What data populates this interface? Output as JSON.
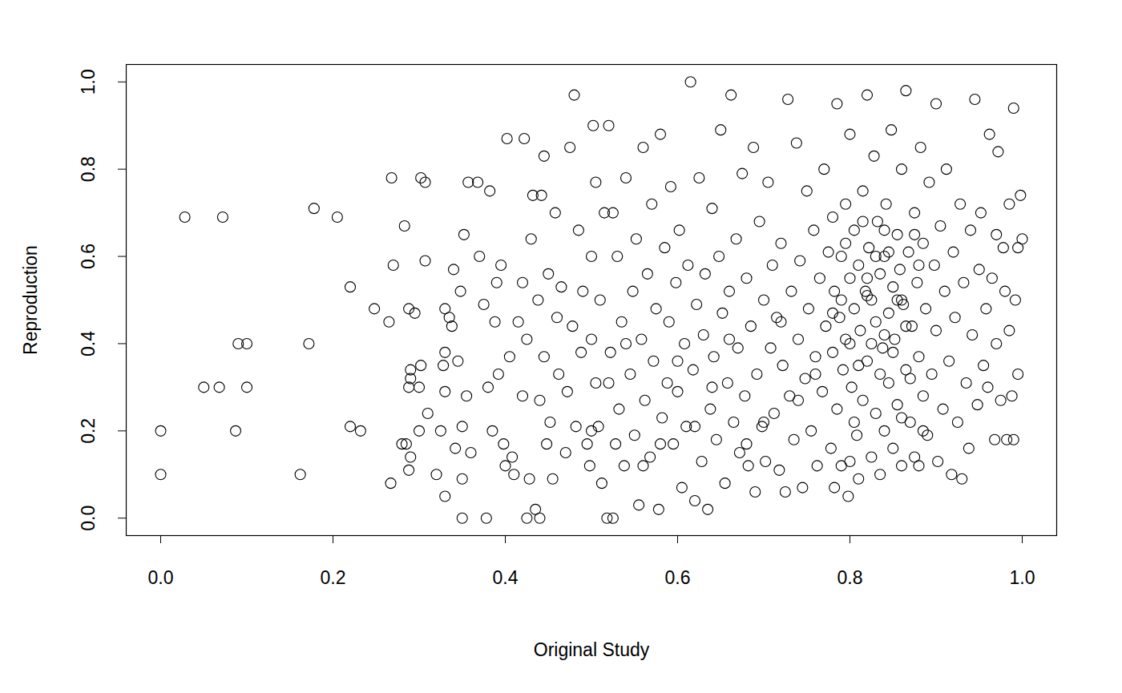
{
  "chart_data": {
    "type": "scatter",
    "x_label": "Original Study",
    "y_label": "Reproduction",
    "color": "black",
    "marker": "circle",
    "xlim": [
      -0.04,
      1.04
    ],
    "ylim": [
      -0.04,
      1.04
    ],
    "xticks": [
      {
        "value": 0,
        "label": "0.0"
      },
      0.2,
      0.4,
      0.6,
      0.8,
      {
        "value": 1,
        "label": "1.0"
      }
    ],
    "yticks": [
      {
        "value": 0,
        "label": "0.0"
      },
      0.2,
      0.4,
      0.6,
      0.8,
      {
        "value": 1,
        "label": "1.0"
      }
    ],
    "x": [
      0.0,
      0.0,
      0.028,
      0.072,
      0.05,
      0.068,
      0.1,
      0.087,
      0.09,
      0.1,
      0.178,
      0.162,
      0.172,
      0.205,
      0.22,
      0.22,
      0.232,
      0.248,
      0.265,
      0.268,
      0.27,
      0.267,
      0.28,
      0.285,
      0.283,
      0.288,
      0.29,
      0.29,
      0.288,
      0.29,
      0.288,
      0.295,
      0.3,
      0.3,
      0.302,
      0.302,
      0.307,
      0.307,
      0.31,
      0.32,
      0.325,
      0.328,
      0.33,
      0.33,
      0.33,
      0.33,
      0.335,
      0.338,
      0.34,
      0.342,
      0.345,
      0.348,
      0.35,
      0.35,
      0.35,
      0.352,
      0.355,
      0.357,
      0.36,
      0.368,
      0.37,
      0.375,
      0.378,
      0.38,
      0.382,
      0.385,
      0.388,
      0.39,
      0.392,
      0.395,
      0.398,
      0.4,
      0.402,
      0.405,
      0.408,
      0.41,
      0.415,
      0.42,
      0.42,
      0.422,
      0.425,
      0.425,
      0.428,
      0.43,
      0.432,
      0.435,
      0.438,
      0.44,
      0.44,
      0.442,
      0.445,
      0.445,
      0.448,
      0.45,
      0.452,
      0.455,
      0.458,
      0.46,
      0.462,
      0.465,
      0.47,
      0.472,
      0.475,
      0.478,
      0.48,
      0.482,
      0.485,
      0.488,
      0.49,
      0.495,
      0.498,
      0.5,
      0.5,
      0.502,
      0.505,
      0.505,
      0.508,
      0.51,
      0.512,
      0.515,
      0.518,
      0.52,
      0.522,
      0.525,
      0.525,
      0.528,
      0.53,
      0.532,
      0.535,
      0.538,
      0.54,
      0.545,
      0.548,
      0.55,
      0.552,
      0.555,
      0.558,
      0.56,
      0.562,
      0.565,
      0.568,
      0.57,
      0.572,
      0.575,
      0.578,
      0.58,
      0.582,
      0.585,
      0.588,
      0.59,
      0.592,
      0.595,
      0.598,
      0.6,
      0.602,
      0.605,
      0.608,
      0.61,
      0.612,
      0.615,
      0.618,
      0.62,
      0.622,
      0.625,
      0.628,
      0.63,
      0.632,
      0.635,
      0.638,
      0.64,
      0.642,
      0.645,
      0.648,
      0.65,
      0.652,
      0.655,
      0.658,
      0.66,
      0.662,
      0.665,
      0.668,
      0.67,
      0.672,
      0.675,
      0.678,
      0.68,
      0.682,
      0.685,
      0.688,
      0.69,
      0.692,
      0.695,
      0.698,
      0.7,
      0.702,
      0.705,
      0.708,
      0.71,
      0.712,
      0.715,
      0.718,
      0.72,
      0.722,
      0.725,
      0.728,
      0.73,
      0.732,
      0.735,
      0.738,
      0.74,
      0.742,
      0.745,
      0.748,
      0.75,
      0.752,
      0.755,
      0.758,
      0.76,
      0.762,
      0.765,
      0.768,
      0.77,
      0.772,
      0.775,
      0.778,
      0.78,
      0.78,
      0.782,
      0.782,
      0.785,
      0.785,
      0.788,
      0.79,
      0.79,
      0.792,
      0.795,
      0.795,
      0.798,
      0.8,
      0.8,
      0.802,
      0.805,
      0.805,
      0.808,
      0.81,
      0.81,
      0.812,
      0.815,
      0.815,
      0.818,
      0.82,
      0.82,
      0.822,
      0.825,
      0.825,
      0.828,
      0.83,
      0.83,
      0.832,
      0.835,
      0.835,
      0.838,
      0.84,
      0.84,
      0.842,
      0.845,
      0.845,
      0.848,
      0.85,
      0.85,
      0.852,
      0.855,
      0.855,
      0.858,
      0.86,
      0.86,
      0.862,
      0.865,
      0.865,
      0.868,
      0.87,
      0.872,
      0.875,
      0.875,
      0.878,
      0.88,
      0.882,
      0.885,
      0.885,
      0.888,
      0.89,
      0.892,
      0.895,
      0.898,
      0.9,
      0.9,
      0.902,
      0.905,
      0.908,
      0.91,
      0.912,
      0.915,
      0.918,
      0.92,
      0.922,
      0.925,
      0.928,
      0.93,
      0.932,
      0.935,
      0.938,
      0.94,
      0.942,
      0.945,
      0.948,
      0.95,
      0.952,
      0.955,
      0.958,
      0.96,
      0.962,
      0.965,
      0.968,
      0.97,
      0.972,
      0.975,
      0.978,
      0.98,
      0.982,
      0.985,
      0.985,
      0.988,
      0.99,
      0.99,
      0.992,
      0.995,
      0.995,
      0.998,
      1.0,
      0.97,
      0.79,
      0.8,
      0.81,
      0.82,
      0.83,
      0.84,
      0.85,
      0.86,
      0.87,
      0.88,
      0.795,
      0.805,
      0.815,
      0.825,
      0.835,
      0.845,
      0.855,
      0.865,
      0.875,
      0.885,
      0.5,
      0.52,
      0.54,
      0.56,
      0.58,
      0.6,
      0.62,
      0.64,
      0.66,
      0.68,
      0.7,
      0.72,
      0.74,
      0.76,
      0.78,
      0.8,
      0.82,
      0.84,
      0.86,
      0.88
    ],
    "values": [
      0.2,
      0.1,
      0.69,
      0.69,
      0.3,
      0.3,
      0.3,
      0.2,
      0.4,
      0.4,
      0.71,
      0.1,
      0.4,
      0.69,
      0.53,
      0.21,
      0.2,
      0.48,
      0.45,
      0.78,
      0.58,
      0.08,
      0.17,
      0.17,
      0.67,
      0.48,
      0.34,
      0.32,
      0.3,
      0.14,
      0.11,
      0.47,
      0.3,
      0.2,
      0.35,
      0.78,
      0.77,
      0.59,
      0.24,
      0.1,
      0.2,
      0.35,
      0.48,
      0.38,
      0.29,
      0.05,
      0.46,
      0.44,
      0.57,
      0.16,
      0.36,
      0.52,
      0.0,
      0.21,
      0.09,
      0.65,
      0.28,
      0.77,
      0.15,
      0.77,
      0.6,
      0.49,
      0.0,
      0.3,
      0.75,
      0.2,
      0.45,
      0.54,
      0.33,
      0.58,
      0.17,
      0.12,
      0.87,
      0.37,
      0.14,
      0.1,
      0.45,
      0.28,
      0.54,
      0.87,
      0.0,
      0.41,
      0.09,
      0.64,
      0.74,
      0.02,
      0.5,
      0.0,
      0.27,
      0.74,
      0.83,
      0.37,
      0.17,
      0.56,
      0.22,
      0.09,
      0.7,
      0.46,
      0.33,
      0.53,
      0.15,
      0.29,
      0.85,
      0.44,
      0.97,
      0.21,
      0.66,
      0.38,
      0.52,
      0.17,
      0.12,
      0.41,
      0.6,
      0.9,
      0.31,
      0.77,
      0.21,
      0.5,
      0.08,
      0.7,
      0.0,
      0.9,
      0.38,
      0.0,
      0.7,
      0.17,
      0.6,
      0.25,
      0.45,
      0.12,
      0.78,
      0.33,
      0.52,
      0.19,
      0.64,
      0.03,
      0.41,
      0.85,
      0.27,
      0.56,
      0.14,
      0.72,
      0.36,
      0.48,
      0.02,
      0.88,
      0.23,
      0.62,
      0.31,
      0.45,
      0.76,
      0.17,
      0.54,
      0.29,
      0.66,
      0.07,
      0.4,
      0.21,
      0.58,
      1.0,
      0.34,
      0.04,
      0.49,
      0.78,
      0.13,
      0.42,
      0.56,
      0.02,
      0.25,
      0.71,
      0.37,
      0.18,
      0.6,
      0.89,
      0.47,
      0.08,
      0.31,
      0.52,
      0.97,
      0.22,
      0.64,
      0.39,
      0.15,
      0.79,
      0.28,
      0.55,
      0.12,
      0.44,
      0.85,
      0.06,
      0.33,
      0.68,
      0.21,
      0.5,
      0.13,
      0.77,
      0.39,
      0.58,
      0.24,
      0.46,
      0.11,
      0.63,
      0.35,
      0.06,
      0.96,
      0.28,
      0.52,
      0.18,
      0.86,
      0.41,
      0.59,
      0.07,
      0.32,
      0.75,
      0.48,
      0.2,
      0.66,
      0.37,
      0.12,
      0.55,
      0.29,
      0.8,
      0.44,
      0.61,
      0.16,
      0.38,
      0.69,
      0.07,
      0.52,
      0.95,
      0.25,
      0.46,
      0.12,
      0.6,
      0.34,
      0.72,
      0.41,
      0.05,
      0.55,
      0.88,
      0.3,
      0.48,
      0.66,
      0.19,
      0.09,
      0.58,
      0.43,
      0.75,
      0.27,
      0.52,
      0.97,
      0.36,
      0.62,
      0.14,
      0.5,
      0.83,
      0.24,
      0.45,
      0.68,
      0.56,
      0.1,
      0.39,
      0.6,
      0.2,
      0.72,
      0.47,
      0.31,
      0.89,
      0.53,
      0.16,
      0.41,
      0.65,
      0.26,
      0.57,
      0.12,
      0.8,
      0.49,
      0.34,
      0.98,
      0.61,
      0.22,
      0.44,
      0.7,
      0.14,
      0.54,
      0.37,
      0.85,
      0.28,
      0.63,
      0.48,
      0.19,
      0.77,
      0.33,
      0.58,
      0.95,
      0.43,
      0.13,
      0.67,
      0.25,
      0.52,
      0.8,
      0.36,
      0.1,
      0.61,
      0.46,
      0.22,
      0.72,
      0.09,
      0.54,
      0.31,
      0.16,
      0.66,
      0.42,
      0.96,
      0.26,
      0.57,
      0.7,
      0.35,
      0.48,
      0.3,
      0.88,
      0.55,
      0.18,
      0.4,
      0.84,
      0.27,
      0.62,
      0.52,
      0.18,
      0.72,
      0.43,
      0.28,
      0.94,
      0.18,
      0.5,
      0.33,
      0.62,
      0.74,
      0.64,
      0.65,
      0.5,
      0.4,
      0.35,
      0.55,
      0.6,
      0.42,
      0.38,
      0.5,
      0.32,
      0.58,
      0.63,
      0.22,
      0.68,
      0.4,
      0.33,
      0.61,
      0.5,
      0.44,
      0.65,
      0.2,
      0.2,
      0.31,
      0.4,
      0.12,
      0.17,
      0.36,
      0.21,
      0.3,
      0.41,
      0.17,
      0.22,
      0.45,
      0.27,
      0.33,
      0.47,
      0.13,
      0.51,
      0.66,
      0.23,
      0.12
    ]
  }
}
